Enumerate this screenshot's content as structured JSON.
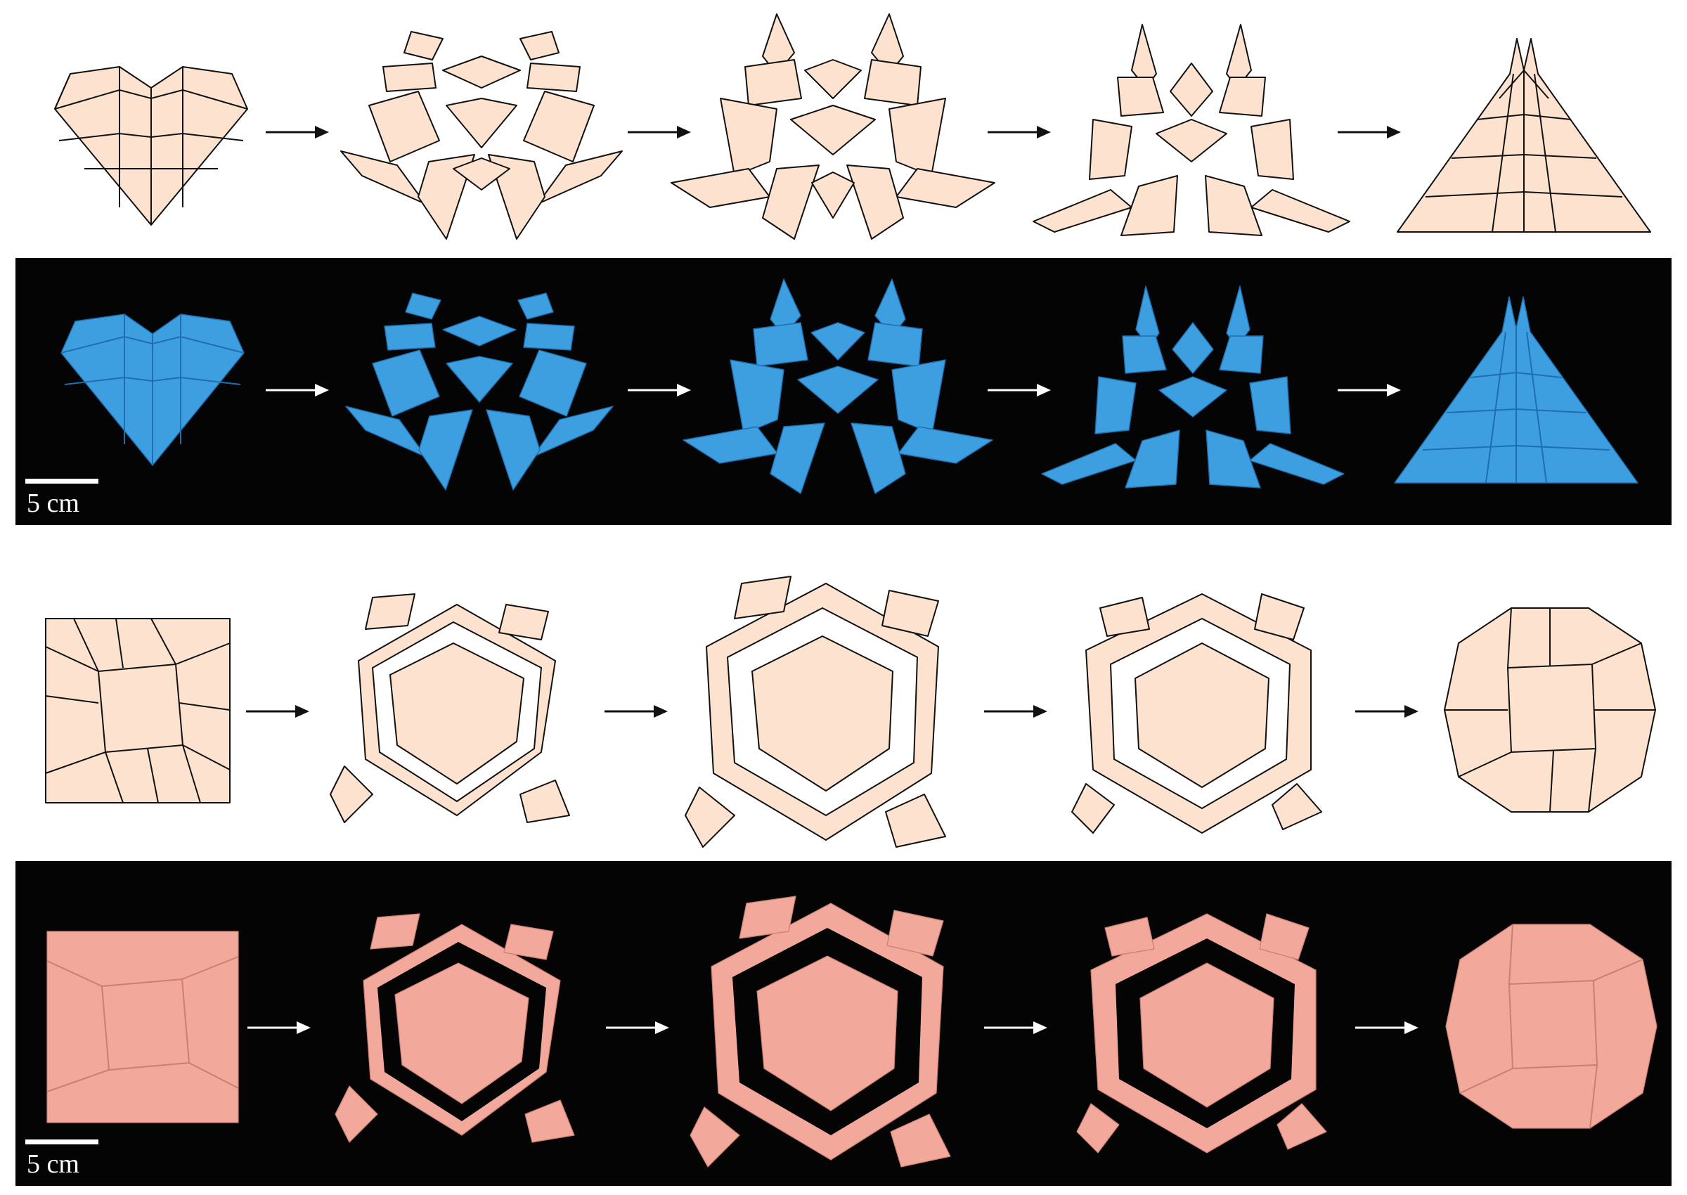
{
  "figure": {
    "scale_bar_top": "5 cm",
    "scale_bar_bottom": "5 cm",
    "colors": {
      "drawing_fill": "#fde3cf",
      "drawing_stroke": "#111111",
      "photo_background": "#050404",
      "blue_material": "#3d9ee0",
      "pink_material": "#f2a89a"
    },
    "heart_sequence": [
      "heart",
      "expanded-1",
      "expanded-2",
      "expanded-3",
      "triangle"
    ],
    "square_sequence": [
      "square",
      "expanded-1",
      "expanded-2",
      "expanded-3",
      "circle"
    ],
    "arrows_per_row": 4
  }
}
